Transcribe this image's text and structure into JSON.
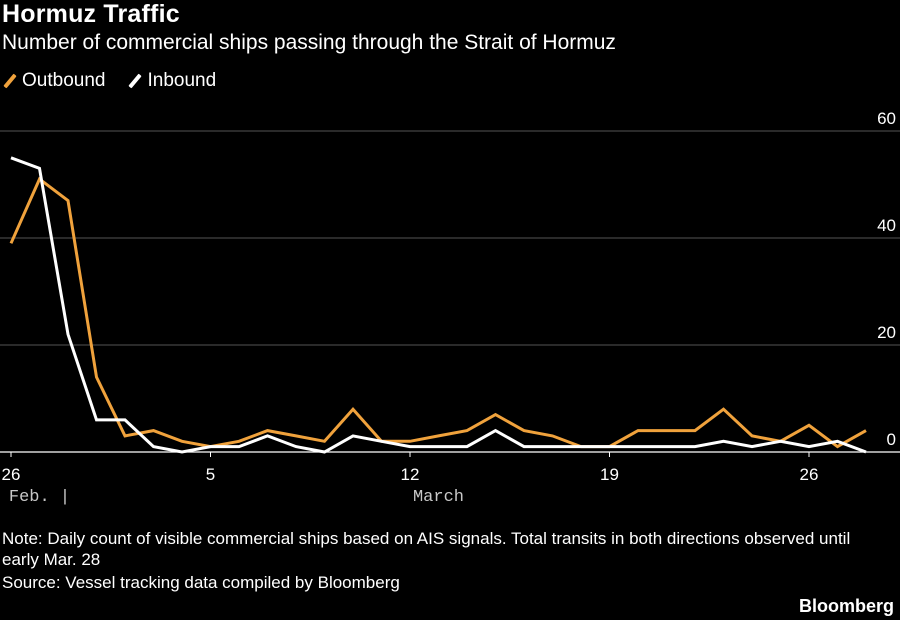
{
  "header": {
    "title": "Hormuz Traffic",
    "subtitle": "Number of commercial ships passing through the Strait of Hormuz"
  },
  "legend": [
    {
      "label": "Outbound",
      "color": "#f0a23c"
    },
    {
      "label": "Inbound",
      "color": "#ffffff"
    }
  ],
  "footer": {
    "note": "Note: Daily count of visible commercial ships based on AIS signals. Total transits in both directions observed until early Mar. 28",
    "source": "Source: Vessel tracking data compiled by Bloomberg",
    "brand": "Bloomberg"
  },
  "chart_data": {
    "type": "line",
    "title": "Hormuz Traffic",
    "subtitle": "Number of commercial ships passing through the Strait of Hormuz",
    "xlabel": "",
    "ylabel": "",
    "ylim": [
      0,
      60
    ],
    "y_ticks": [
      0,
      20,
      40,
      60
    ],
    "y_axis_side": "right",
    "grid": "horizontal",
    "legend_position": "top-left",
    "x": [
      "Feb 26",
      "Feb 27",
      "Feb 28",
      "Mar 1",
      "Mar 2",
      "Mar 3",
      "Mar 4",
      "Mar 5",
      "Mar 6",
      "Mar 7",
      "Mar 8",
      "Mar 9",
      "Mar 10",
      "Mar 11",
      "Mar 12",
      "Mar 13",
      "Mar 14",
      "Mar 15",
      "Mar 16",
      "Mar 17",
      "Mar 18",
      "Mar 19",
      "Mar 20",
      "Mar 21",
      "Mar 22",
      "Mar 23",
      "Mar 24",
      "Mar 25",
      "Mar 26",
      "Mar 27",
      "Mar 28"
    ],
    "x_tick_labels": [
      {
        "x": "Feb 26",
        "label": "26"
      },
      {
        "x": "Mar 5",
        "label": "5"
      },
      {
        "x": "Mar 12",
        "label": "12"
      },
      {
        "x": "Mar 19",
        "label": "19"
      },
      {
        "x": "Mar 26",
        "label": "26"
      }
    ],
    "x_month_labels": [
      {
        "x": "Feb 27",
        "label": "Feb. |"
      },
      {
        "x": "Mar 13",
        "label": "March"
      }
    ],
    "series": [
      {
        "name": "Outbound",
        "color": "#f0a23c",
        "values": [
          39,
          51,
          47,
          14,
          3,
          4,
          2,
          1,
          2,
          4,
          3,
          2,
          8,
          2,
          2,
          3,
          4,
          7,
          4,
          3,
          1,
          1,
          4,
          4,
          4,
          8,
          3,
          2,
          5,
          1,
          4
        ]
      },
      {
        "name": "Inbound",
        "color": "#ffffff",
        "values": [
          55,
          53,
          22,
          6,
          6,
          1,
          0,
          1,
          1,
          3,
          1,
          0,
          3,
          2,
          1,
          1,
          1,
          4,
          1,
          1,
          1,
          1,
          1,
          1,
          1,
          2,
          1,
          2,
          1,
          2,
          0
        ]
      }
    ]
  }
}
